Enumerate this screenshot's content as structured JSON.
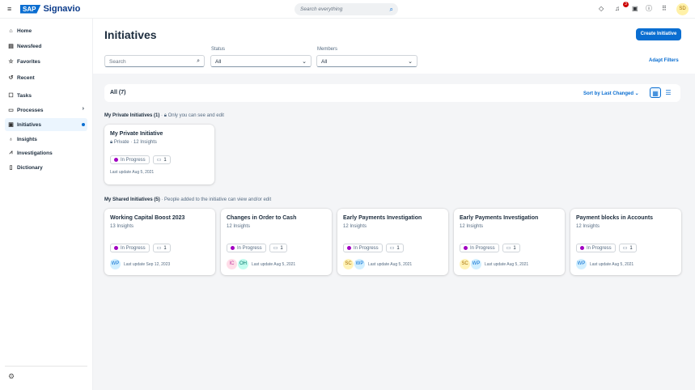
{
  "header": {
    "brand": "SAP",
    "product": "Signavio",
    "search_placeholder": "Search everything",
    "notification_count": "3",
    "user_initials": "SD"
  },
  "sidebar": {
    "items": [
      {
        "label": "Home",
        "icon": "home-icon"
      },
      {
        "label": "Newsfeed",
        "icon": "newsfeed-icon"
      },
      {
        "label": "Favorites",
        "icon": "star-icon"
      },
      {
        "label": "Recent",
        "icon": "history-icon"
      },
      {
        "label": "Tasks",
        "icon": "tasks-icon"
      },
      {
        "label": "Processes",
        "icon": "processes-icon"
      },
      {
        "label": "Initiatives",
        "icon": "initiatives-icon",
        "active": true
      },
      {
        "label": "Insights",
        "icon": "lightbulb-icon"
      },
      {
        "label": "Investigations",
        "icon": "chart-icon"
      },
      {
        "label": "Dictionary",
        "icon": "book-icon"
      }
    ]
  },
  "page": {
    "title": "Initiatives",
    "create_label": "Create Initiative",
    "search_placeholder": "Search",
    "status_label": "Status",
    "status_value": "All",
    "members_label": "Members",
    "members_value": "All",
    "adapt_filters": "Adapt Filters",
    "all_count": "All (7)",
    "sort_label": "Sort by Last Changed"
  },
  "private_section": {
    "title": "My Private Initiatives (1)",
    "note": "Only you can see and edit"
  },
  "shared_section": {
    "title": "My Shared Initiatives (5)",
    "note": "People added to the initiative can view and/or edit"
  },
  "private_cards": [
    {
      "title": "My Private Initiative",
      "visibility": "Private",
      "insights": "12 Insights",
      "status": "In Progress",
      "comments": "1",
      "updated": "Last update Aug 5, 2021"
    }
  ],
  "shared_cards": [
    {
      "title": "Working Capital Boost 2023",
      "insights": "13 Insights",
      "status": "In Progress",
      "comments": "1",
      "updated": "Last update Sep 12, 2023",
      "members": [
        {
          "i": "WP",
          "bg": "#d1efff",
          "fg": "#0a6ed1"
        }
      ]
    },
    {
      "title": "Changes in Order to Cash",
      "insights": "12 Insights",
      "status": "In Progress",
      "comments": "1",
      "updated": "Last update Aug 5, 2021",
      "members": [
        {
          "i": "IC",
          "bg": "#ffdde8",
          "fg": "#c0399f"
        },
        {
          "i": "OH",
          "bg": "#c2fcee",
          "fg": "#04756b"
        }
      ]
    },
    {
      "title": "Early Payments Investigation",
      "insights": "12 Insights",
      "status": "In Progress",
      "comments": "1",
      "updated": "Last update Aug 5, 2021",
      "members": [
        {
          "i": "SC",
          "bg": "#fff3b8",
          "fg": "#a56d00"
        },
        {
          "i": "WP",
          "bg": "#d1efff",
          "fg": "#0a6ed1"
        }
      ]
    },
    {
      "title": "Early Payments Investigation",
      "insights": "12 Insights",
      "status": "In Progress",
      "comments": "1",
      "updated": "Last update Aug 5, 2021",
      "members": [
        {
          "i": "SC",
          "bg": "#fff3b8",
          "fg": "#a56d00"
        },
        {
          "i": "WP",
          "bg": "#d1efff",
          "fg": "#0a6ed1"
        }
      ]
    },
    {
      "title": "Payment blocks in Accounts",
      "insights": "12 Insights",
      "status": "In Progress",
      "comments": "1",
      "updated": "Last update Aug 5, 2021",
      "members": [
        {
          "i": "WP",
          "bg": "#d1efff",
          "fg": "#0a6ed1"
        }
      ]
    }
  ],
  "colors": {
    "accent": "#0a6ed1",
    "in_progress": "#a100c2"
  }
}
